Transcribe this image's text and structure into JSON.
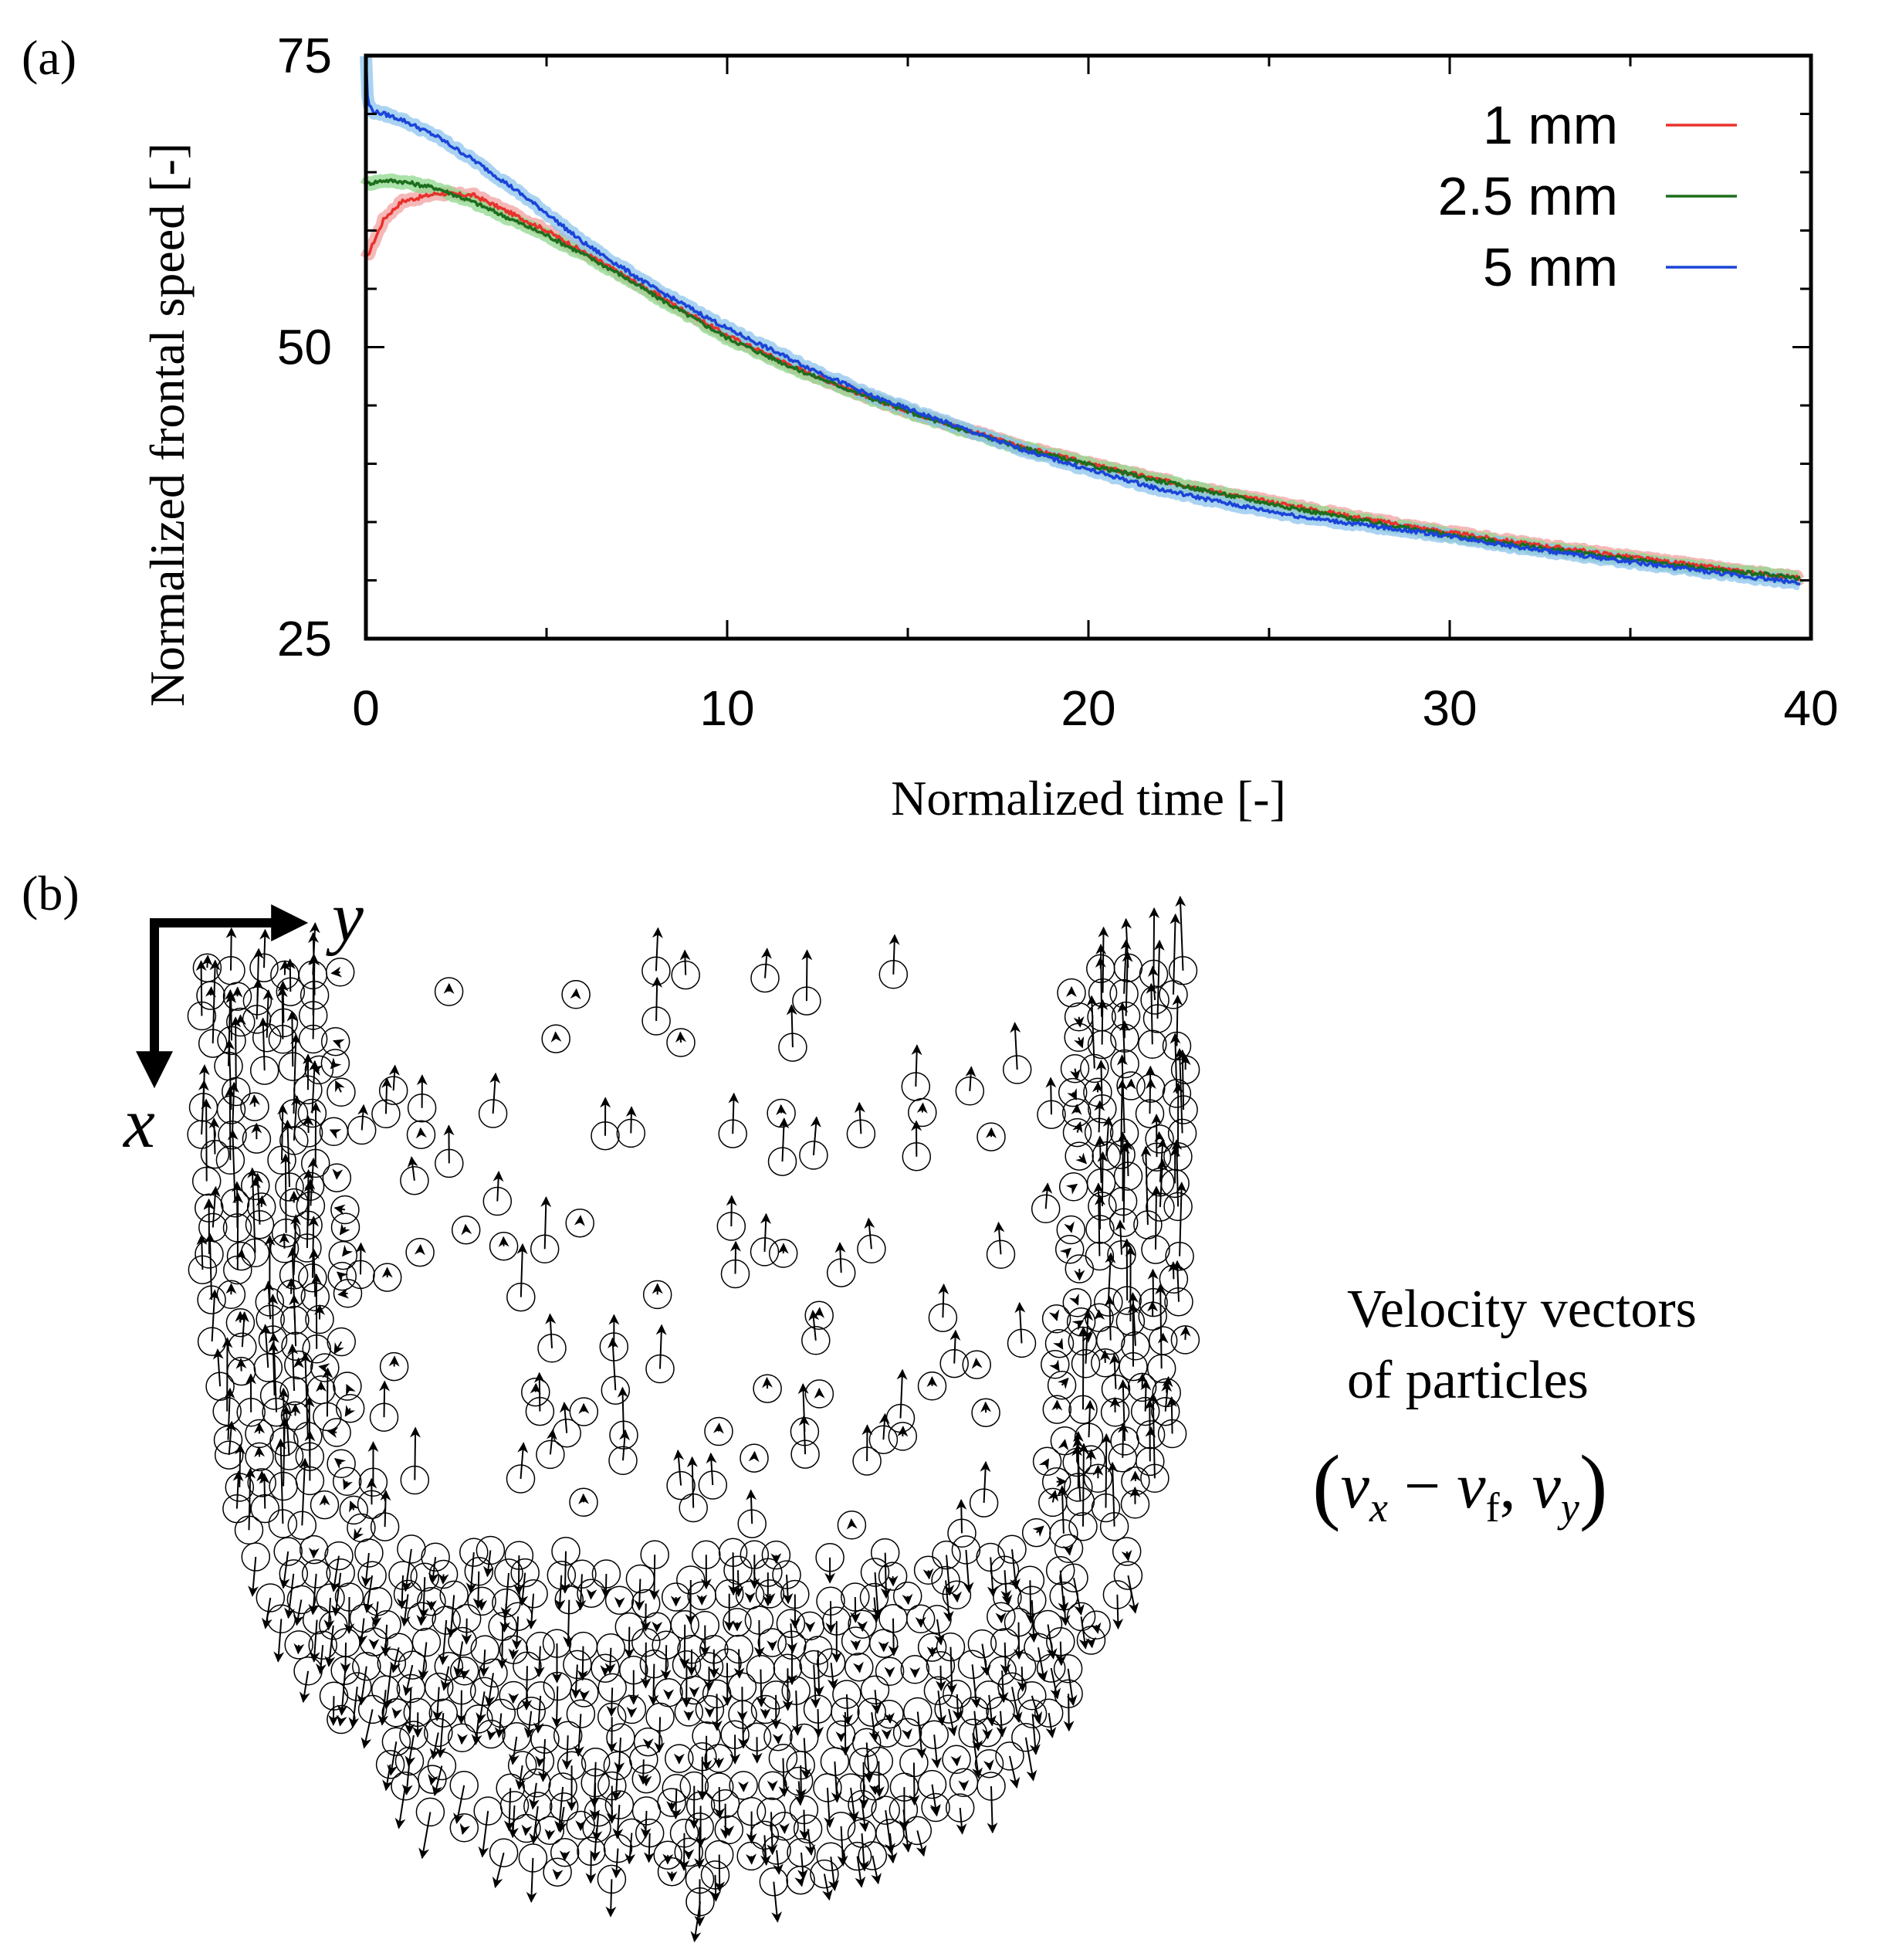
{
  "panel_labels": {
    "a": "(a)",
    "b": "(b)"
  },
  "chart_data": {
    "type": "line",
    "title": "",
    "xlabel": "Normalized time [-]",
    "ylabel": "Normalized frontal speed [-]",
    "xlim": [
      0,
      40
    ],
    "ylim": [
      25,
      75
    ],
    "xticks": [
      0,
      10,
      20,
      30,
      40
    ],
    "yticks": [
      25,
      50,
      75
    ],
    "xminor": [
      5,
      15,
      25,
      35
    ],
    "yminor": [
      30,
      35,
      40,
      45,
      55,
      60,
      65,
      70
    ],
    "legend_position": "top-right",
    "series": [
      {
        "name": "1 mm",
        "color": "#e8322c",
        "band_color": "#f2a0a0",
        "x": [
          0,
          0.5,
          1,
          2,
          3,
          4,
          5,
          6,
          7,
          8,
          10,
          12,
          14,
          16,
          18,
          20,
          22,
          24,
          26,
          28,
          30,
          32,
          34,
          36,
          38,
          39.7
        ],
        "y": [
          57.5,
          61,
          62.5,
          63.2,
          63,
          61.5,
          60,
          58.2,
          56.4,
          54.6,
          51,
          48.1,
          45.6,
          43.5,
          41.6,
          40,
          38.6,
          37.3,
          36.2,
          35.1,
          34.1,
          33.2,
          32.4,
          31.6,
          30.8,
          30.2
        ]
      },
      {
        "name": "2.5 mm",
        "color": "#1c6e1c",
        "band_color": "#8ed88e",
        "x": [
          0,
          0.5,
          1,
          2,
          3,
          4,
          5,
          6,
          7,
          8,
          10,
          12,
          14,
          16,
          18,
          20,
          22,
          24,
          26,
          28,
          30,
          32,
          34,
          36,
          38,
          39.7
        ],
        "y": [
          64,
          64.3,
          64.2,
          63.6,
          62.4,
          61,
          59.6,
          58,
          56.3,
          54.4,
          50.8,
          48,
          45.6,
          43.4,
          41.5,
          39.9,
          38.5,
          37.2,
          36,
          34.9,
          33.9,
          33,
          32.2,
          31.4,
          30.7,
          30.2
        ]
      },
      {
        "name": "5 mm",
        "color": "#1a44d8",
        "band_color": "#8ec4ee",
        "x": [
          0,
          0.05,
          0.2,
          0.5,
          1,
          2,
          3,
          4,
          5,
          6,
          7,
          8,
          10,
          12,
          14,
          16,
          18,
          20,
          22,
          24,
          26,
          28,
          30,
          32,
          34,
          36,
          38,
          39.7
        ],
        "y": [
          75,
          71,
          70.2,
          70,
          69.5,
          68,
          66,
          63.8,
          61.5,
          59,
          57,
          55,
          51.6,
          48.6,
          45.8,
          43.6,
          41.4,
          39.5,
          37.8,
          36.5,
          35.4,
          34.6,
          33.8,
          32.8,
          32,
          31.2,
          30.4,
          29.8
        ]
      }
    ]
  },
  "panel_b": {
    "axis_labels": {
      "y": "y",
      "x": "x"
    },
    "caption_line1": "Velocity vectors",
    "caption_line2": "of particles",
    "formula": {
      "open": "(",
      "vx": "v",
      "vx_sub": "x",
      "minus": " − ",
      "vf": "v",
      "vf_sub": "f",
      "comma": ", ",
      "vy": "v",
      "vy_sub": "y",
      "close": ")"
    }
  }
}
